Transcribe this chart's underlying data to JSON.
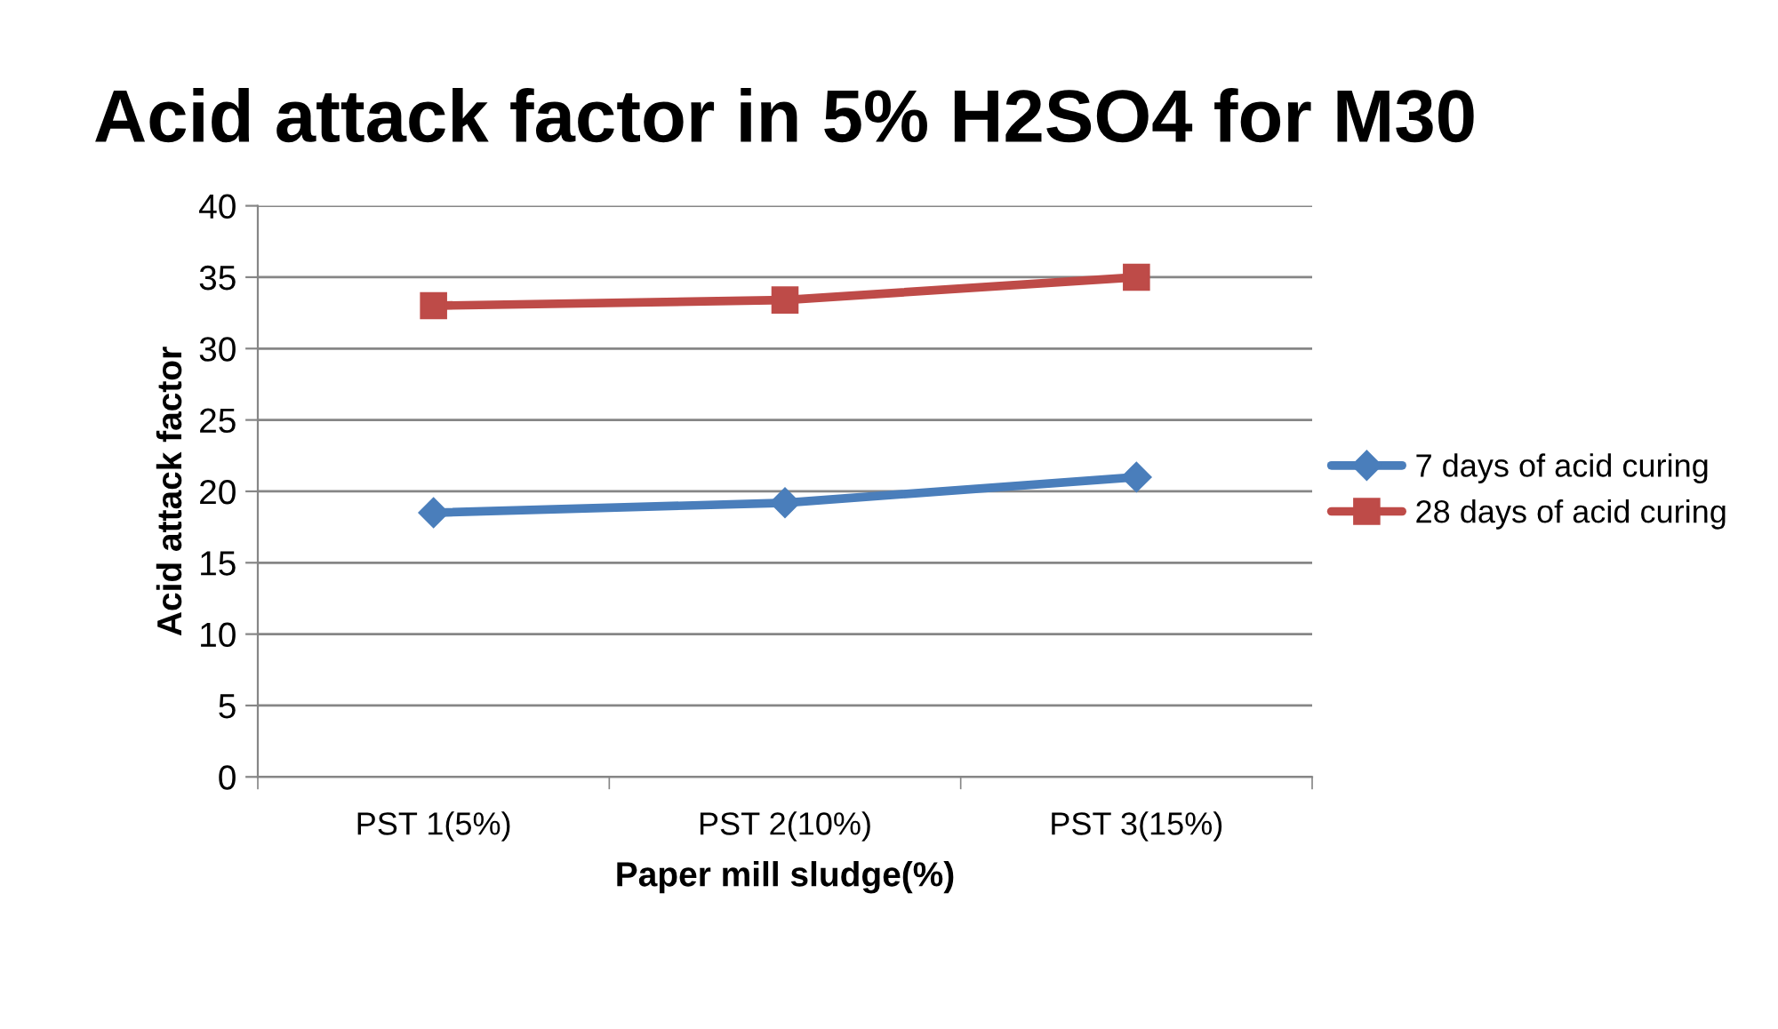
{
  "chart_data": {
    "type": "line",
    "title": "Acid attack factor in 5% H2SO4 for M30",
    "xlabel": "Paper mill sludge(%)",
    "ylabel": "Acid attack factor",
    "categories": [
      "PST 1(5%)",
      "PST 2(10%)",
      "PST 3(15%)"
    ],
    "series": [
      {
        "name": "7 days of acid curing",
        "color": "#4a7ebb",
        "values": [
          18.5,
          19.2,
          21
        ],
        "marker": "diamond"
      },
      {
        "name": "28 days of acid curing",
        "color": "#be4b48",
        "values": [
          33,
          33.4,
          35
        ],
        "marker": "square"
      }
    ],
    "ylim": [
      0,
      40
    ],
    "yticks": [
      0,
      5,
      10,
      15,
      20,
      25,
      30,
      35,
      40
    ],
    "grid": "y",
    "legend": "right",
    "line_style": "solid"
  }
}
